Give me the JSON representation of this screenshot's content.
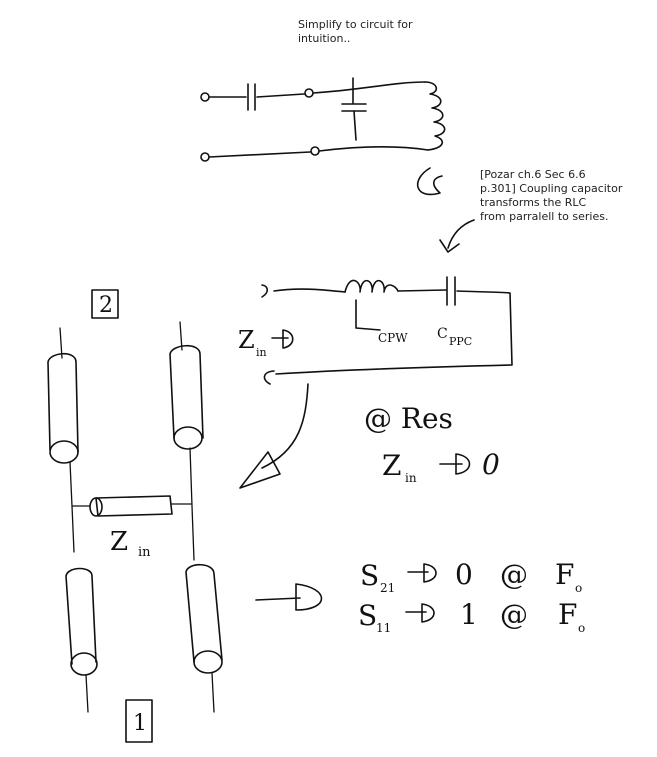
{
  "notes": {
    "simplify": "Simplify to circuit for\nintuition..",
    "pozar": "[Pozar ch.6 Sec 6.6\np.301] Coupling capacitor\ntransforms the RLC\nfrom parralell to series."
  },
  "labels": {
    "port2": "2",
    "port1": "1",
    "zin_series": "Z",
    "zin_series_sub": "in",
    "l_main": "L",
    "l_sub": "CPW",
    "c_main": "C",
    "c_sub": "PPC",
    "zin_stub": "Z",
    "zin_stub_sub": "in"
  },
  "equations": {
    "at_res": "@ Res",
    "zin_res": "Z",
    "zin_res_sub": "in",
    "zin_res_value": "0",
    "s21": "S",
    "s21_sub": "21",
    "s21_value": "0",
    "s21_at": "@",
    "s21_f": "F",
    "s21_f_sub": "o",
    "s11": "S",
    "s11_sub": "11",
    "s11_value": "1",
    "s11_at": "@",
    "s11_f": "F",
    "s11_f_sub": "o"
  }
}
